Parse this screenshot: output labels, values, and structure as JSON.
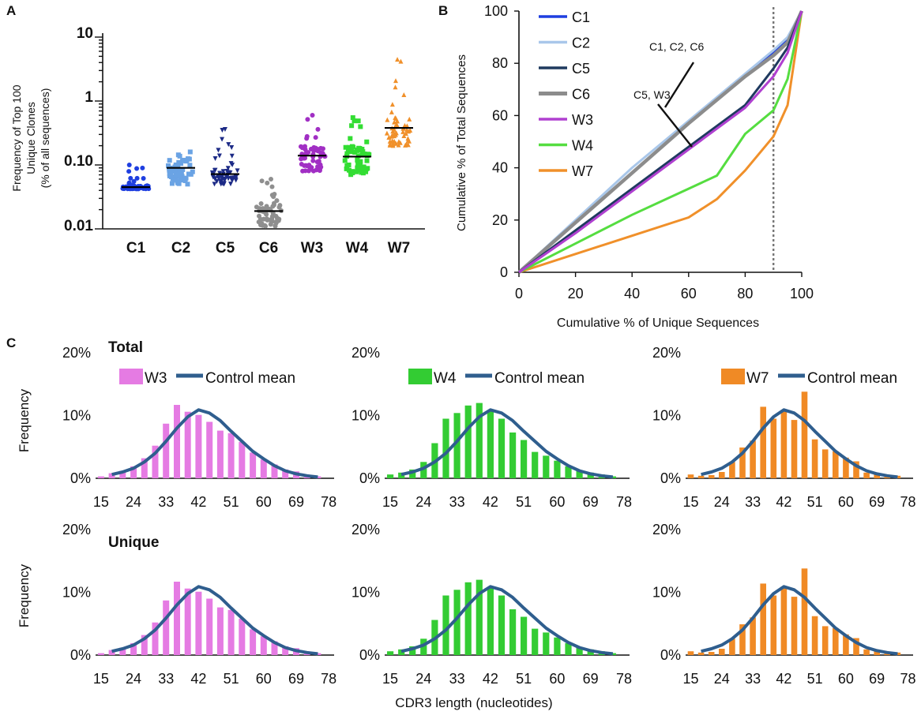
{
  "panel_letters": [
    "A",
    "B",
    "C"
  ],
  "chart_data": [
    {
      "id": "A",
      "type": "scatter",
      "title": "",
      "ylabel_lines": [
        "Frequency of Top 100",
        "Unique Clones",
        "(% of all sequences)"
      ],
      "yscale": "log",
      "ylim": [
        0.01,
        10
      ],
      "yticks": [
        "0.01",
        "0.10",
        "1",
        "10"
      ],
      "categories": [
        "C1",
        "C2",
        "C5",
        "C6",
        "W3",
        "W4",
        "W7"
      ],
      "medians": [
        0.045,
        0.09,
        0.072,
        0.019,
        0.14,
        0.135,
        0.38
      ],
      "ranges": [
        [
          0.042,
          0.1
        ],
        [
          0.05,
          0.16
        ],
        [
          0.05,
          0.36
        ],
        [
          0.011,
          0.06
        ],
        [
          0.08,
          0.6
        ],
        [
          0.07,
          0.55
        ],
        [
          0.2,
          4.5
        ]
      ],
      "markers": [
        "circle",
        "square",
        "triangle-down",
        "circle",
        "circle",
        "square",
        "triangle-up"
      ],
      "colors": [
        "#1f3fe0",
        "#6aa3e4",
        "#1c2a86",
        "#8f8f8f",
        "#a12fc4",
        "#33dd33",
        "#f0902a"
      ]
    },
    {
      "id": "B",
      "type": "line",
      "xlabel": "Cumulative % of Unique Sequences",
      "ylabel": "Cumulative % of Total  Sequences",
      "xlim": [
        0,
        100
      ],
      "ylim": [
        0,
        100
      ],
      "xticks": [
        "0",
        "20",
        "40",
        "60",
        "80",
        "100"
      ],
      "yticks": [
        "0",
        "20",
        "40",
        "60",
        "80",
        "100"
      ],
      "reference_line_x": 90,
      "annotations": [
        {
          "text": "C1, C2, C6",
          "x": 65,
          "y": 86
        },
        {
          "text": "C5, W3",
          "x": 50,
          "y": 68
        }
      ],
      "series": [
        {
          "name": "C1",
          "color": "#1f3fe0",
          "x": [
            0,
            20,
            40,
            60,
            80,
            90,
            95,
            100
          ],
          "y": [
            0,
            19,
            38,
            57,
            75,
            84,
            89,
            100
          ]
        },
        {
          "name": "C2",
          "color": "#a9c7ea",
          "x": [
            0,
            20,
            40,
            60,
            80,
            90,
            95,
            100
          ],
          "y": [
            0,
            20,
            40,
            58,
            76,
            85,
            90,
            100
          ]
        },
        {
          "name": "C5",
          "color": "#1f3a5f",
          "x": [
            0,
            20,
            40,
            60,
            80,
            90,
            95,
            100
          ],
          "y": [
            0,
            16,
            32,
            48,
            64,
            78,
            86,
            100
          ]
        },
        {
          "name": "C6",
          "color": "#8c8c8c",
          "x": [
            0,
            20,
            40,
            60,
            80,
            90,
            95,
            100
          ],
          "y": [
            0,
            19,
            38,
            57,
            75,
            83,
            88,
            100
          ]
        },
        {
          "name": "W3",
          "color": "#b040d0",
          "x": [
            0,
            20,
            40,
            60,
            80,
            90,
            95,
            100
          ],
          "y": [
            0,
            15,
            31,
            47,
            63,
            75,
            84,
            100
          ]
        },
        {
          "name": "W4",
          "color": "#55dd40",
          "x": [
            0,
            20,
            40,
            60,
            70,
            80,
            90,
            95,
            100
          ],
          "y": [
            0,
            11,
            22,
            32,
            37,
            53,
            62,
            74,
            100
          ]
        },
        {
          "name": "W7",
          "color": "#f0902a",
          "x": [
            0,
            20,
            40,
            60,
            70,
            80,
            90,
            95,
            100
          ],
          "y": [
            0,
            7,
            14,
            21,
            28,
            39,
            52,
            64,
            100
          ]
        }
      ]
    },
    {
      "id": "C",
      "type": "bar",
      "xlabel": "CDR3 length (nucleotides)",
      "ylabel": "Frequency",
      "row_titles": [
        "Total",
        "Unique"
      ],
      "xticks": [
        "15",
        "24",
        "33",
        "42",
        "51",
        "60",
        "69",
        "78"
      ],
      "yticks": [
        "0%",
        "10%",
        "20%"
      ],
      "ylim": [
        0,
        20
      ],
      "x_start": 15,
      "x_step": 3,
      "control_mean_label": "Control mean",
      "control_mean_color": "#2f5e8e",
      "control_mean": [
        0.6,
        1.0,
        1.6,
        2.6,
        4.0,
        5.9,
        8.0,
        9.8,
        10.9,
        10.4,
        9.2,
        7.5,
        5.9,
        4.3,
        3.1,
        2.0,
        1.2,
        0.7,
        0.4,
        0.2
      ],
      "panels": [
        {
          "name": "W3",
          "color": "#e57be3",
          "values": [
            0.3,
            0.8,
            1.2,
            1.9,
            3.2,
            5.2,
            8.7,
            11.7,
            10.6,
            10.1,
            9.0,
            7.6,
            7.2,
            5.8,
            4.1,
            3.0,
            2.2,
            1.4,
            1.1,
            0.5,
            0.3
          ]
        },
        {
          "name": "W4",
          "color": "#33cc33",
          "values": [
            0.6,
            0.9,
            1.4,
            2.6,
            5.6,
            9.5,
            10.4,
            11.6,
            12.0,
            10.8,
            9.5,
            7.3,
            6.1,
            4.2,
            3.6,
            2.8,
            1.9,
            1.3,
            0.9,
            0.6,
            0.3
          ]
        },
        {
          "name": "W7",
          "color": "#f08a25",
          "values": [
            0.6,
            0.4,
            0.5,
            1.0,
            2.6,
            4.9,
            6.0,
            11.4,
            9.5,
            10.9,
            9.3,
            13.8,
            6.2,
            4.6,
            4.3,
            3.3,
            2.7,
            0.9,
            0.8,
            0.4,
            0.4
          ]
        }
      ]
    }
  ]
}
